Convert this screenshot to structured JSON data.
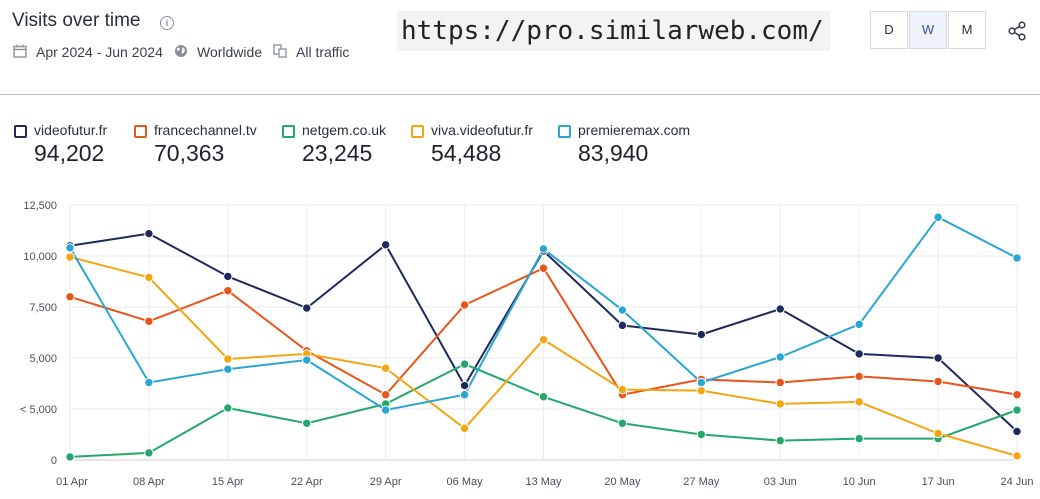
{
  "header": {
    "title": "Visits over time",
    "date_range": "Apr 2024 - Jun 2024",
    "region": "Worldwide",
    "traffic": "All traffic",
    "url_text": "https://pro.similarweb.com/",
    "granularity": [
      "D",
      "W",
      "M"
    ],
    "granularity_selected": "W"
  },
  "chart_data": {
    "type": "line",
    "x": [
      "01 Apr",
      "08 Apr",
      "15 Apr",
      "22 Apr",
      "29 Apr",
      "06 May",
      "13 May",
      "20 May",
      "27 May",
      "03 Jun",
      "10 Jun",
      "17 Jun",
      "24 Jun"
    ],
    "y_ticks": [
      "12,500",
      "10,000",
      "7,500",
      "5,000",
      "< 5,000",
      "0"
    ],
    "ylim": [
      0,
      12500
    ],
    "grid": true,
    "legend_position": "top-left",
    "series": [
      {
        "name": "videofutur.fr",
        "total": "94,202",
        "color": "#1f2a5c",
        "values": [
          10500,
          11100,
          9000,
          7450,
          10550,
          3650,
          10250,
          6600,
          6150,
          7400,
          5200,
          5000,
          1400
        ]
      },
      {
        "name": "francechannel.tv",
        "total": "70,363",
        "color": "#e8541a",
        "values": [
          8000,
          6800,
          8300,
          5350,
          3200,
          7600,
          9400,
          3200,
          3950,
          3800,
          4100,
          3850,
          3200
        ]
      },
      {
        "name": "netgem.co.uk",
        "total": "23,245",
        "color": "#23a86b",
        "values": [
          150,
          350,
          2550,
          1800,
          2750,
          4700,
          3100,
          1800,
          1250,
          950,
          1050,
          1050,
          2450
        ]
      },
      {
        "name": "viva.videofutur.fr",
        "total": "54,488",
        "color": "#f5a511",
        "values": [
          9950,
          8950,
          4950,
          5200,
          4500,
          1550,
          5900,
          3450,
          3400,
          2750,
          2850,
          1300,
          200
        ]
      },
      {
        "name": "premieremax.com",
        "total": "83,940",
        "color": "#2aa6d2",
        "values": [
          10400,
          3800,
          4450,
          4900,
          2450,
          3200,
          10350,
          7350,
          3800,
          5050,
          6650,
          11900,
          9900
        ]
      }
    ]
  }
}
